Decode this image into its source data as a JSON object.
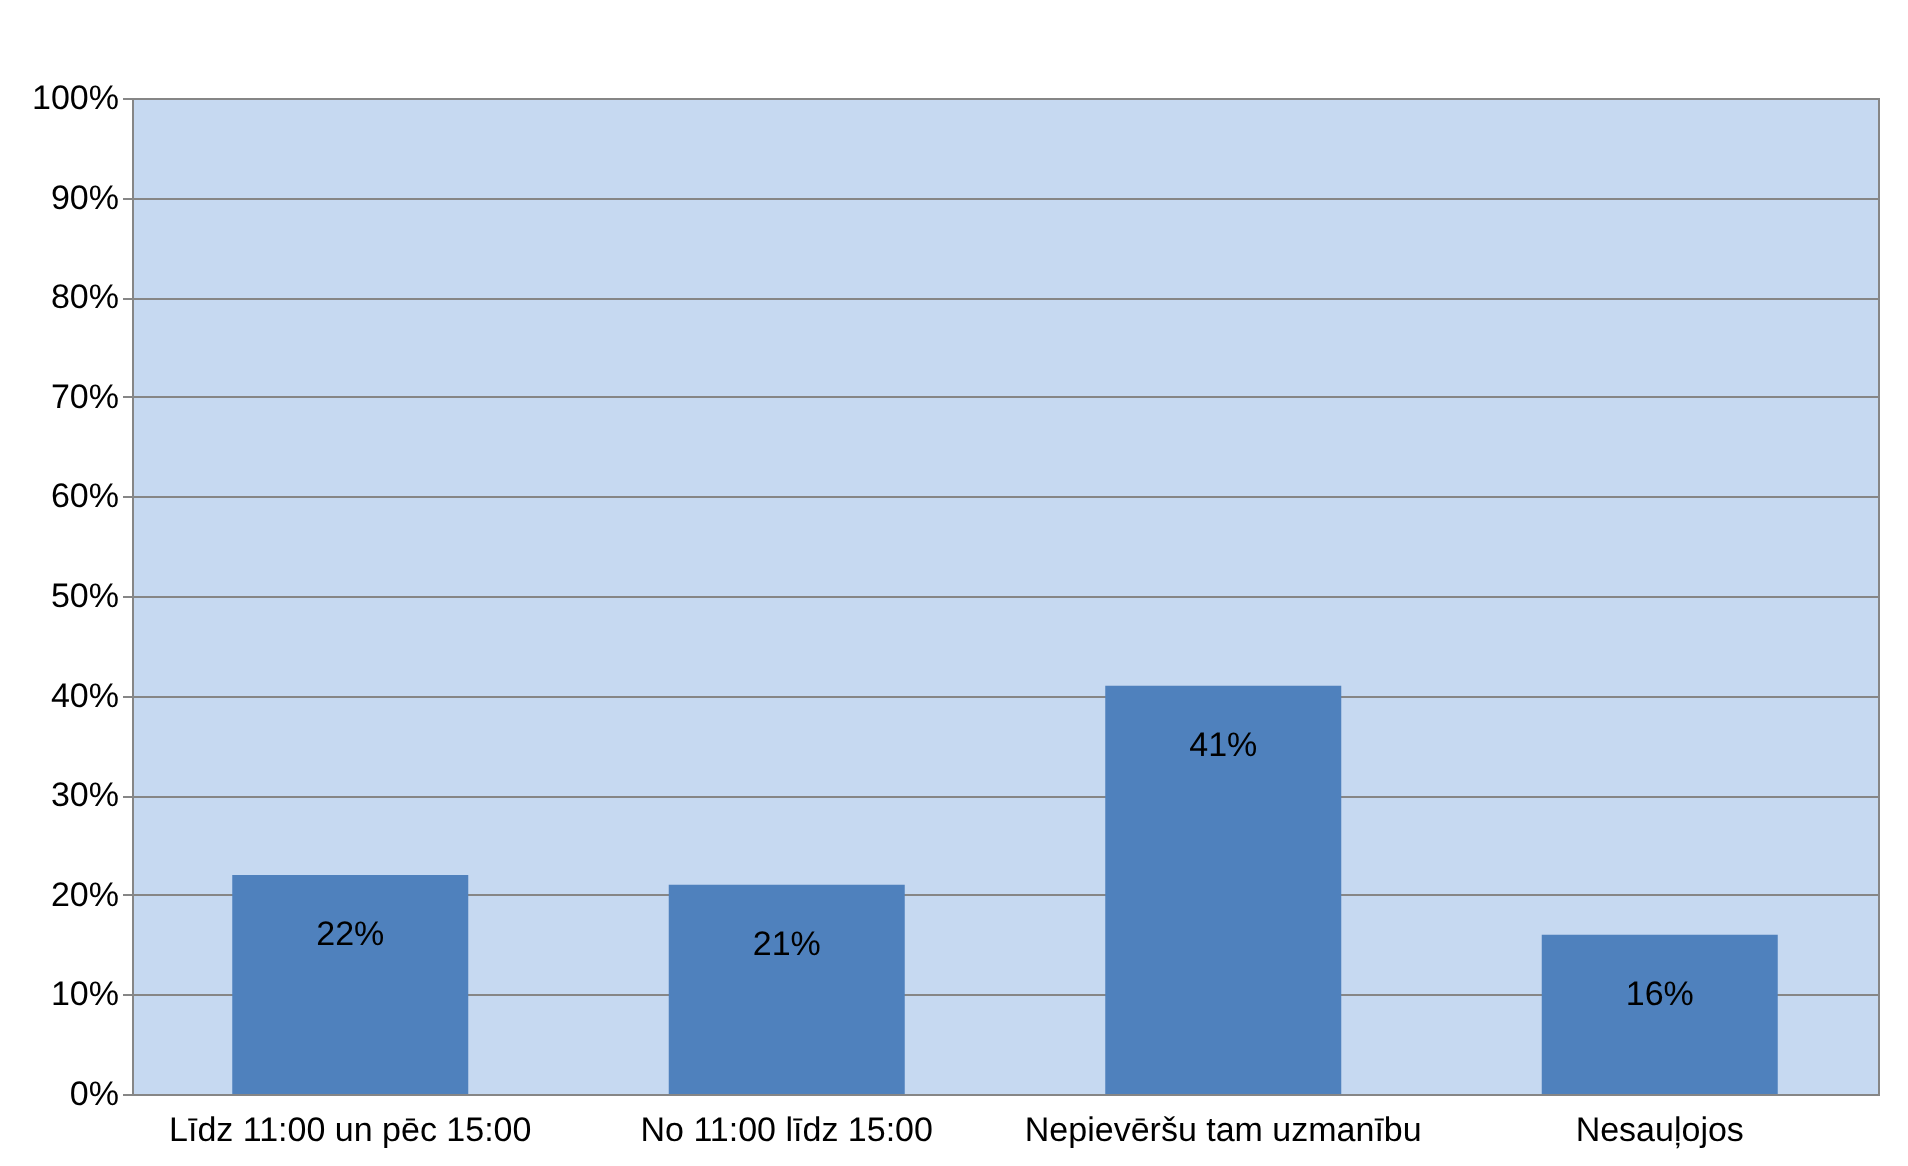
{
  "chart_data": {
    "type": "bar",
    "categories": [
      "Līdz 11:00 un pēc 15:00",
      "No 11:00 līdz 15:00",
      "Nepievēršu tam uzmanību",
      "Nesauļojos"
    ],
    "values": [
      22,
      21,
      41,
      16
    ],
    "value_labels": [
      "22%",
      "21%",
      "41%",
      "16%"
    ],
    "color": "#4f81bd",
    "ylim": [
      0,
      100
    ],
    "yticks": [
      {
        "value": 0,
        "label": "0%"
      },
      {
        "value": 10,
        "label": "10%"
      },
      {
        "value": 20,
        "label": "20%"
      },
      {
        "value": 30,
        "label": "30%"
      },
      {
        "value": 40,
        "label": "40%"
      },
      {
        "value": 50,
        "label": "50%"
      },
      {
        "value": 60,
        "label": "60%"
      },
      {
        "value": 70,
        "label": "70%"
      },
      {
        "value": 80,
        "label": "80%"
      },
      {
        "value": 90,
        "label": "90%"
      },
      {
        "value": 100,
        "label": "100%"
      }
    ],
    "grid": "y",
    "legend": false
  }
}
